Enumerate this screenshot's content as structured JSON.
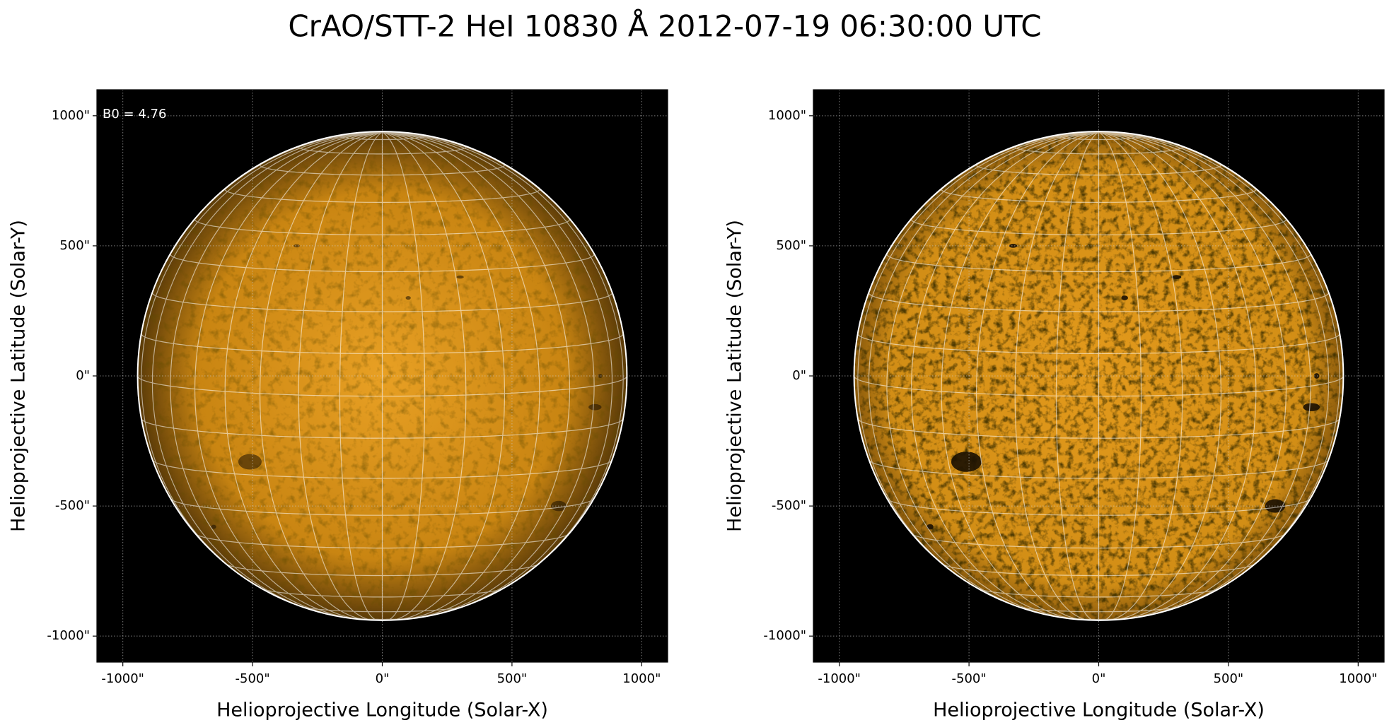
{
  "title": "CrAO/STT-2 HeI 10830 Å 2012-07-19 06:30:00 UTC",
  "chart_data": [
    {
      "type": "image",
      "annotation": "B0 = 4.76",
      "xlabel": "Helioprojective Longitude (Solar-X)",
      "ylabel": "Helioprojective Latitude (Solar-Y)",
      "xlim": [
        -1100,
        1100
      ],
      "ylim": [
        -1100,
        1100
      ],
      "xticks": [
        {
          "value": -1000,
          "label": "-1000\""
        },
        {
          "value": -500,
          "label": "-500\""
        },
        {
          "value": 0,
          "label": "0\""
        },
        {
          "value": 500,
          "label": "500\""
        },
        {
          "value": 1000,
          "label": "1000\""
        }
      ],
      "yticks": [
        {
          "value": -1000,
          "label": "-1000\""
        },
        {
          "value": -500,
          "label": "-500\""
        },
        {
          "value": 0,
          "label": "0\""
        },
        {
          "value": 500,
          "label": "500\""
        },
        {
          "value": 1000,
          "label": "1000\""
        }
      ],
      "grid": true
    },
    {
      "type": "image",
      "xlabel": "Helioprojective Longitude (Solar-X)",
      "ylabel": "Helioprojective Latitude (Solar-Y)",
      "xlim": [
        -1100,
        1100
      ],
      "ylim": [
        -1100,
        1100
      ],
      "xticks": [
        {
          "value": -1000,
          "label": "-1000\""
        },
        {
          "value": -500,
          "label": "-500\""
        },
        {
          "value": 0,
          "label": "0\""
        },
        {
          "value": 500,
          "label": "500\""
        },
        {
          "value": 1000,
          "label": "1000\""
        }
      ],
      "yticks": [
        {
          "value": -1000,
          "label": "-1000\""
        },
        {
          "value": -500,
          "label": "-500\""
        },
        {
          "value": 0,
          "label": "0\""
        },
        {
          "value": 500,
          "label": "500\""
        },
        {
          "value": 1000,
          "label": "1000\""
        }
      ],
      "grid": true
    }
  ]
}
